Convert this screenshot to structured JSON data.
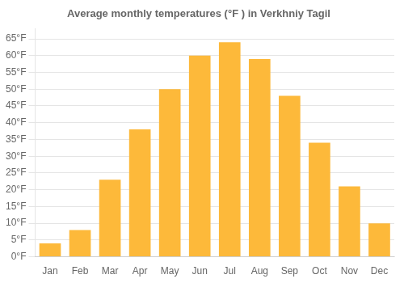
{
  "chart_data": {
    "type": "bar",
    "title": "Average monthly temperatures (°F ) in Verkhniy Tagil",
    "categories": [
      "Jan",
      "Feb",
      "Mar",
      "Apr",
      "May",
      "Jun",
      "Jul",
      "Aug",
      "Sep",
      "Oct",
      "Nov",
      "Dec"
    ],
    "values": [
      4,
      8,
      23,
      38,
      50,
      60,
      64,
      59,
      48,
      34,
      21,
      10
    ],
    "color": "#FDB93A",
    "ylim": [
      0,
      68
    ],
    "yticks": [
      {
        "value": 0,
        "label": "0°F"
      },
      {
        "value": 5,
        "label": "5°F"
      },
      {
        "value": 10,
        "label": "10°F"
      },
      {
        "value": 15,
        "label": "15°F"
      },
      {
        "value": 20,
        "label": "20°F"
      },
      {
        "value": 25,
        "label": "25°F"
      },
      {
        "value": 30,
        "label": "30°F"
      },
      {
        "value": 35,
        "label": "35°F"
      },
      {
        "value": 40,
        "label": "40°F"
      },
      {
        "value": 45,
        "label": "45°F"
      },
      {
        "value": 50,
        "label": "50°F"
      },
      {
        "value": 55,
        "label": "55°F"
      },
      {
        "value": 60,
        "label": "60°F"
      },
      {
        "value": 65,
        "label": "65°F"
      }
    ],
    "grid": true
  }
}
